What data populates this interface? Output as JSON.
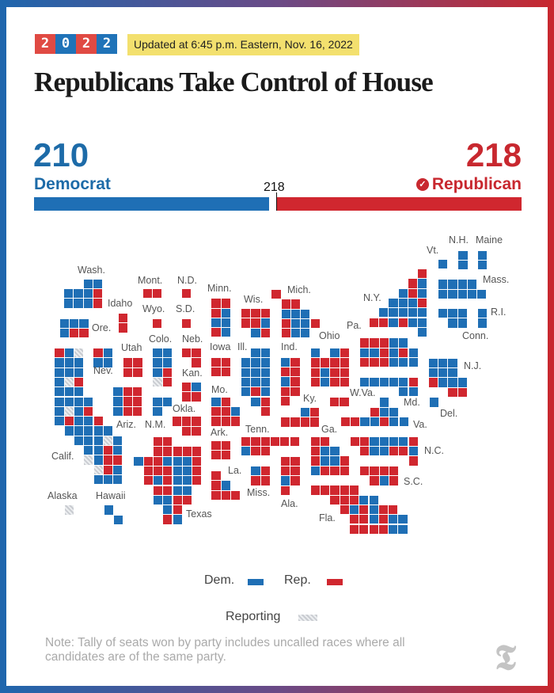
{
  "header": {
    "year_digits": [
      "2",
      "0",
      "2",
      "2"
    ],
    "updated": "Updated at 6:45 p.m. Eastern, Nov. 16, 2022",
    "title": "Republicans Take Control of House"
  },
  "tally": {
    "dem_seats": "210",
    "dem_label": "Democrat",
    "rep_seats": "218",
    "rep_label": "Republican",
    "majority_label": "218",
    "winner_icon": "check-circle-icon"
  },
  "colors": {
    "dem": "#1f6fb5",
    "rep": "#d0272f",
    "reporting": "#c9ccd1"
  },
  "map": {
    "states": [
      {
        "label": "Wash.",
        "seats": [
          "..DD",
          "DDDR",
          "DDDR"
        ]
      },
      {
        "label": "Ore.",
        "seats": [
          "DDD",
          "DRR"
        ]
      },
      {
        "label": "Idaho",
        "seats": [
          "R",
          "R"
        ]
      },
      {
        "label": "Mont.",
        "seats": [
          "RR"
        ]
      },
      {
        "label": "N.D.",
        "seats": [
          "R"
        ]
      },
      {
        "label": "Wyo.",
        "seats": [
          "R"
        ]
      },
      {
        "label": "S.D.",
        "seats": [
          "R"
        ]
      },
      {
        "label": "Calif.",
        "seats": [
          "RDN",
          "DDD",
          "DDD",
          "DNR",
          "DDD",
          "DDDD",
          "DNDR",
          "DRDDR",
          ".DDDDD",
          "..DDDND",
          "...DDRD",
          "...NDRR",
          "....NRD",
          "....DDD"
        ]
      },
      {
        "label": "Nev.",
        "seats": [
          "RD",
          "DD"
        ]
      },
      {
        "label": "Utah",
        "seats": [
          "RR",
          "RR"
        ]
      },
      {
        "label": "Colo.",
        "seats": [
          "DD",
          "DD",
          "DR",
          "NR"
        ]
      },
      {
        "label": "Neb.",
        "seats": [
          "RR",
          ".R"
        ]
      },
      {
        "label": "Kan.",
        "seats": [
          "RD",
          "RR"
        ]
      },
      {
        "label": "Ariz.",
        "seats": [
          "DRR",
          "DRR",
          "DRR"
        ]
      },
      {
        "label": "N.M.",
        "seats": [
          "DD",
          "D"
        ]
      },
      {
        "label": "Okla.",
        "seats": [
          "RRR",
          ".RR"
        ]
      },
      {
        "label": "Texas",
        "seats": [
          "..RR",
          "..RRRRR",
          "DRRDDDR",
          ".RRRDDR",
          ".RDRDDR",
          "..RRDD",
          "..DDRR",
          "...DR",
          "...RD"
        ]
      },
      {
        "label": "Minn.",
        "seats": [
          "RR",
          "RD",
          "DD",
          "RD"
        ]
      },
      {
        "label": "Wis.",
        "seats": [
          "RRR",
          "RRD",
          ".DR"
        ]
      },
      {
        "label": "Mich.",
        "seats": [
          "R",
          ".RR",
          ".DDD",
          ".RDDR",
          ".RDD"
        ]
      },
      {
        "label": "Iowa",
        "seats": [
          "RR",
          "RR"
        ]
      },
      {
        "label": "Ill.",
        "seats": [
          ".DD",
          "DDD",
          "DDD",
          "DDD",
          "DRD",
          ".DR",
          "..R"
        ]
      },
      {
        "label": "Ind.",
        "seats": [
          "DR",
          "RR",
          "DR",
          "RR",
          "R"
        ]
      },
      {
        "label": "Ohio",
        "seats": [
          "D.DR",
          "RRRR",
          "RDRR",
          "RDRR"
        ]
      },
      {
        "label": "Ky.",
        "seats": [
          "..DR",
          "RRRR"
        ]
      },
      {
        "label": "Mo.",
        "seats": [
          "DR",
          "RRD",
          "RRR"
        ]
      },
      {
        "label": "W.Va.",
        "seats": [
          "RR"
        ]
      },
      {
        "label": "Vt.",
        "seats": [
          "D"
        ]
      },
      {
        "label": "N.H.",
        "seats": [
          "D",
          "D"
        ]
      },
      {
        "label": "Maine",
        "seats": [
          "D",
          "D"
        ]
      },
      {
        "label": "Mass.",
        "seats": [
          "DDDD",
          "DDDDD"
        ]
      },
      {
        "label": "R.I.",
        "seats": [
          "D",
          "D"
        ]
      },
      {
        "label": "Conn.",
        "seats": [
          "DDD",
          ".DD"
        ]
      },
      {
        "label": "N.Y.",
        "seats": [
          ".....R",
          "....RD",
          "...DRD",
          "..DDDR",
          ".DDDDD",
          "RRDRDD",
          ".....D"
        ]
      },
      {
        "label": "Pa.",
        "seats": [
          "RRRDD",
          "DDRDRD",
          "RRRDDD"
        ]
      },
      {
        "label": "Md.",
        "seats": [
          "DDDDDR",
          "....DD"
        ]
      },
      {
        "label": "N.J.",
        "seats": [
          "DDD",
          "DDD",
          "RDDD",
          "..RR"
        ]
      },
      {
        "label": "Del.",
        "seats": [
          "D"
        ]
      },
      {
        "label": "Va.",
        "seats": [
          "....D",
          "...RDD",
          "RRDDRDD"
        ]
      },
      {
        "label": "Tenn.",
        "seats": [
          "RRRRRR",
          "DRR"
        ]
      },
      {
        "label": "Ark.",
        "seats": [
          "RR",
          "RR"
        ]
      },
      {
        "label": "Ga.",
        "seats": [
          "RR",
          "RDD",
          "RDDR",
          "DRRR"
        ]
      },
      {
        "label": "N.C.",
        "seats": [
          "RRDDDDR",
          ".RDDRRD",
          "......R"
        ]
      },
      {
        "label": "S.C.",
        "seats": [
          "RRRR",
          ".RDR"
        ]
      },
      {
        "label": "La.",
        "seats": [
          "R",
          "RD",
          "RRR"
        ]
      },
      {
        "label": "Miss.",
        "seats": [
          "DR",
          "RR"
        ]
      },
      {
        "label": "Ala.",
        "seats": [
          "RR",
          "RR",
          "DR",
          "R"
        ]
      },
      {
        "label": "Fla.",
        "seats": [
          "RRRRR",
          "..RRRDD",
          "...RDRDRR",
          "....RRDRDD",
          "....RRRRDD"
        ]
      },
      {
        "label": "Alaska",
        "seats": [
          "N"
        ]
      },
      {
        "label": "Hawaii",
        "seats": [
          "D",
          ".D"
        ]
      }
    ]
  },
  "legend": {
    "dem": "Dem.",
    "rep": "Rep.",
    "reporting": "Reporting"
  },
  "note": "Note: Tally of seats won by party includes uncalled races where all candidates are of the same party.",
  "logo_text": "T"
}
